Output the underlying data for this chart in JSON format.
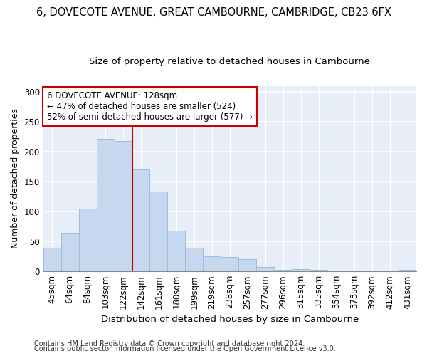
{
  "title1": "6, DOVECOTE AVENUE, GREAT CAMBOURNE, CAMBRIDGE, CB23 6FX",
  "title2": "Size of property relative to detached houses in Cambourne",
  "xlabel": "Distribution of detached houses by size in Cambourne",
  "ylabel": "Number of detached properties",
  "categories": [
    "45sqm",
    "64sqm",
    "84sqm",
    "103sqm",
    "122sqm",
    "142sqm",
    "161sqm",
    "180sqm",
    "199sqm",
    "219sqm",
    "238sqm",
    "257sqm",
    "277sqm",
    "296sqm",
    "315sqm",
    "335sqm",
    "354sqm",
    "373sqm",
    "392sqm",
    "412sqm",
    "431sqm"
  ],
  "values": [
    40,
    64,
    105,
    221,
    218,
    170,
    133,
    68,
    40,
    25,
    24,
    20,
    7,
    3,
    4,
    3,
    0,
    0,
    0,
    0,
    2
  ],
  "bar_color": "#c5d8f0",
  "bar_edge_color": "#9bbedd",
  "vline_color": "#cc0000",
  "vline_x_index": 4,
  "annotation_text": "6 DOVECOTE AVENUE: 128sqm\n← 47% of detached houses are smaller (524)\n52% of semi-detached houses are larger (577) →",
  "annotation_box_facecolor": "#ffffff",
  "annotation_box_edgecolor": "#cc0000",
  "ylim": [
    0,
    310
  ],
  "yticks": [
    0,
    50,
    100,
    150,
    200,
    250,
    300
  ],
  "footer1": "Contains HM Land Registry data © Crown copyright and database right 2024.",
  "footer2": "Contains public sector information licensed under the Open Government Licence v3.0.",
  "fig_bg_color": "#ffffff",
  "plot_bg_color": "#e8eef8",
  "grid_color": "#ffffff",
  "title1_fontsize": 10.5,
  "title2_fontsize": 9.5,
  "xlabel_fontsize": 9.5,
  "ylabel_fontsize": 9,
  "tick_fontsize": 8.5,
  "annotation_fontsize": 8.5,
  "footer_fontsize": 7
}
